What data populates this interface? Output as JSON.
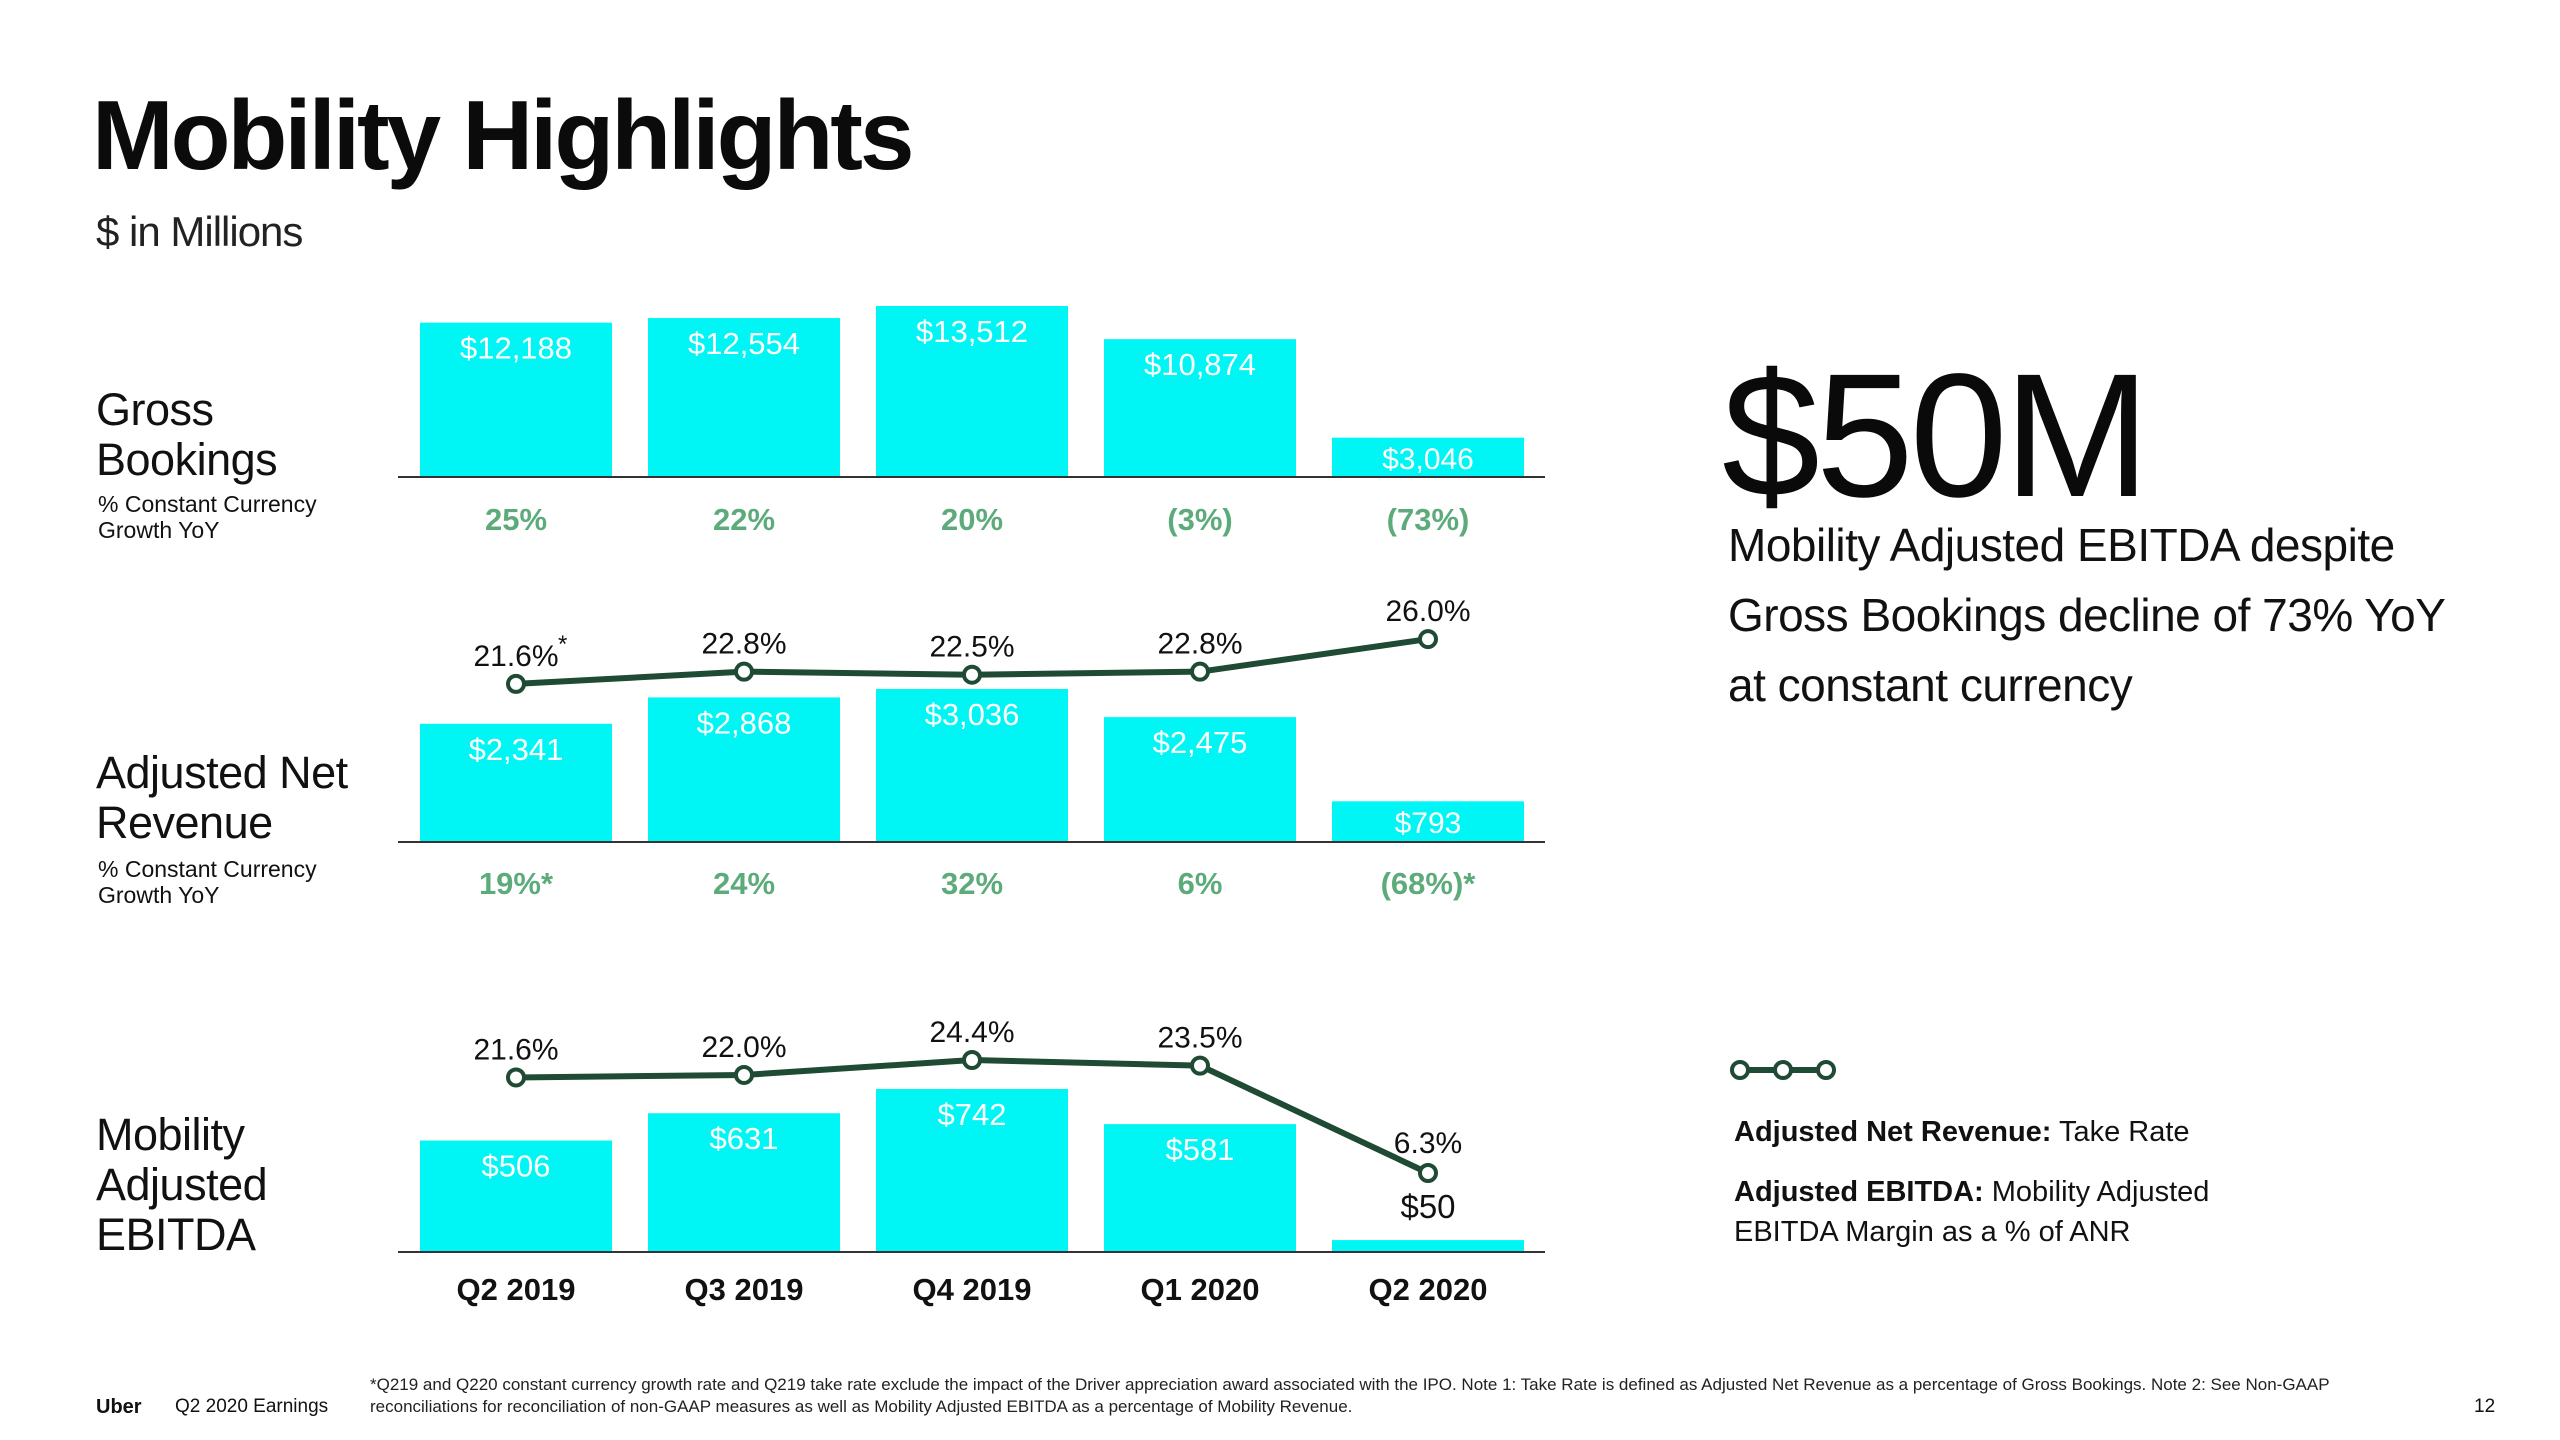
{
  "page": {
    "title": "Mobility Highlights",
    "subtitle": "$ in Millions"
  },
  "rows": {
    "gross_bookings": {
      "label_line1": "Gross",
      "label_line2": "Bookings",
      "sublabel_line1": "% Constant Currency",
      "sublabel_line2": "Growth YoY"
    },
    "anr": {
      "label_line1": "Adjusted Net",
      "label_line2": "Revenue",
      "sublabel_line1": "% Constant Currency",
      "sublabel_line2": "Growth YoY"
    },
    "ebitda": {
      "label_line1": "Mobility",
      "label_line2": "Adjusted",
      "label_line3": "EBITDA"
    }
  },
  "highlight": {
    "value": "$50M",
    "caption_line1": "Mobility Adjusted EBITDA despite",
    "caption_line2": "Gross Bookings decline of 73% YoY",
    "caption_line3": "at constant currency"
  },
  "legend": {
    "anr_label": "Adjusted Net Revenue:",
    "anr_text": " Take Rate",
    "ebitda_label": "Adjusted EBITDA:",
    "ebitda_text_line1": " Mobility Adjusted",
    "ebitda_text_line2": "EBITDA Margin as a % of ANR"
  },
  "footer": {
    "brand": "Uber",
    "deck": "Q2 2020 Earnings",
    "footnote_line1": "*Q219 and Q220 constant currency growth rate and Q219 take rate exclude the impact of the Driver appreciation award associated with the IPO. Note 1: Take Rate is defined as Adjusted Net Revenue as a percentage of Gross Bookings. Note 2: See Non-GAAP",
    "footnote_line2": "reconciliations for reconciliation of non-GAAP measures as well as Mobility Adjusted EBITDA as a percentage of Mobility Revenue.",
    "page_number": "12"
  },
  "colors": {
    "bar": "#00F5F5",
    "line": "#1F4A33",
    "growth_text": "#5DAB7B",
    "axis": "#333333",
    "bar_label": "#ffffff"
  },
  "chart_data": [
    {
      "type": "bar",
      "title": "Gross Bookings",
      "categories": [
        "Q2 2019",
        "Q3 2019",
        "Q4 2019",
        "Q1 2020",
        "Q2 2020"
      ],
      "values": [
        12188,
        12554,
        13512,
        10874,
        3046
      ],
      "value_labels": [
        "$12,188",
        "$12,554",
        "$13,512",
        "$10,874",
        "$3,046"
      ],
      "growth_labels": [
        "25%",
        "22%",
        "20%",
        "(3%)",
        "(73%)"
      ],
      "ylim": [
        0,
        13512
      ]
    },
    {
      "type": "bar",
      "title": "Adjusted Net Revenue",
      "categories": [
        "Q2 2019",
        "Q3 2019",
        "Q4 2019",
        "Q1 2020",
        "Q2 2020"
      ],
      "values": [
        2341,
        2868,
        3036,
        2475,
        793
      ],
      "value_labels": [
        "$2,341",
        "$2,868",
        "$3,036",
        "$2,475",
        "$793"
      ],
      "growth_labels": [
        "19%*",
        "24%",
        "32%",
        "6%",
        "(68%)*"
      ],
      "ylim": [
        0,
        3036
      ],
      "line_series": {
        "name": "Take Rate",
        "values": [
          21.6,
          22.8,
          22.5,
          22.8,
          26.0
        ],
        "labels": [
          "21.6%",
          "22.8%",
          "22.5%",
          "22.8%",
          "26.0%"
        ],
        "first_label_marker": "*",
        "ylim": [
          21.0,
          26.5
        ]
      }
    },
    {
      "type": "bar",
      "title": "Mobility Adjusted EBITDA",
      "categories": [
        "Q2 2019",
        "Q3 2019",
        "Q4 2019",
        "Q1 2020",
        "Q2 2020"
      ],
      "values": [
        506,
        631,
        742,
        581,
        50
      ],
      "value_labels": [
        "$506",
        "$631",
        "$742",
        "$581",
        "$50"
      ],
      "ylim": [
        0,
        742
      ],
      "line_series": {
        "name": "Mobility Adjusted EBITDA Margin as a % of ANR",
        "values": [
          21.6,
          22.0,
          24.4,
          23.5,
          6.3
        ],
        "labels": [
          "21.6%",
          "22.0%",
          "24.4%",
          "23.5%",
          "6.3%"
        ],
        "ylim": [
          6.3,
          24.4
        ]
      }
    }
  ]
}
